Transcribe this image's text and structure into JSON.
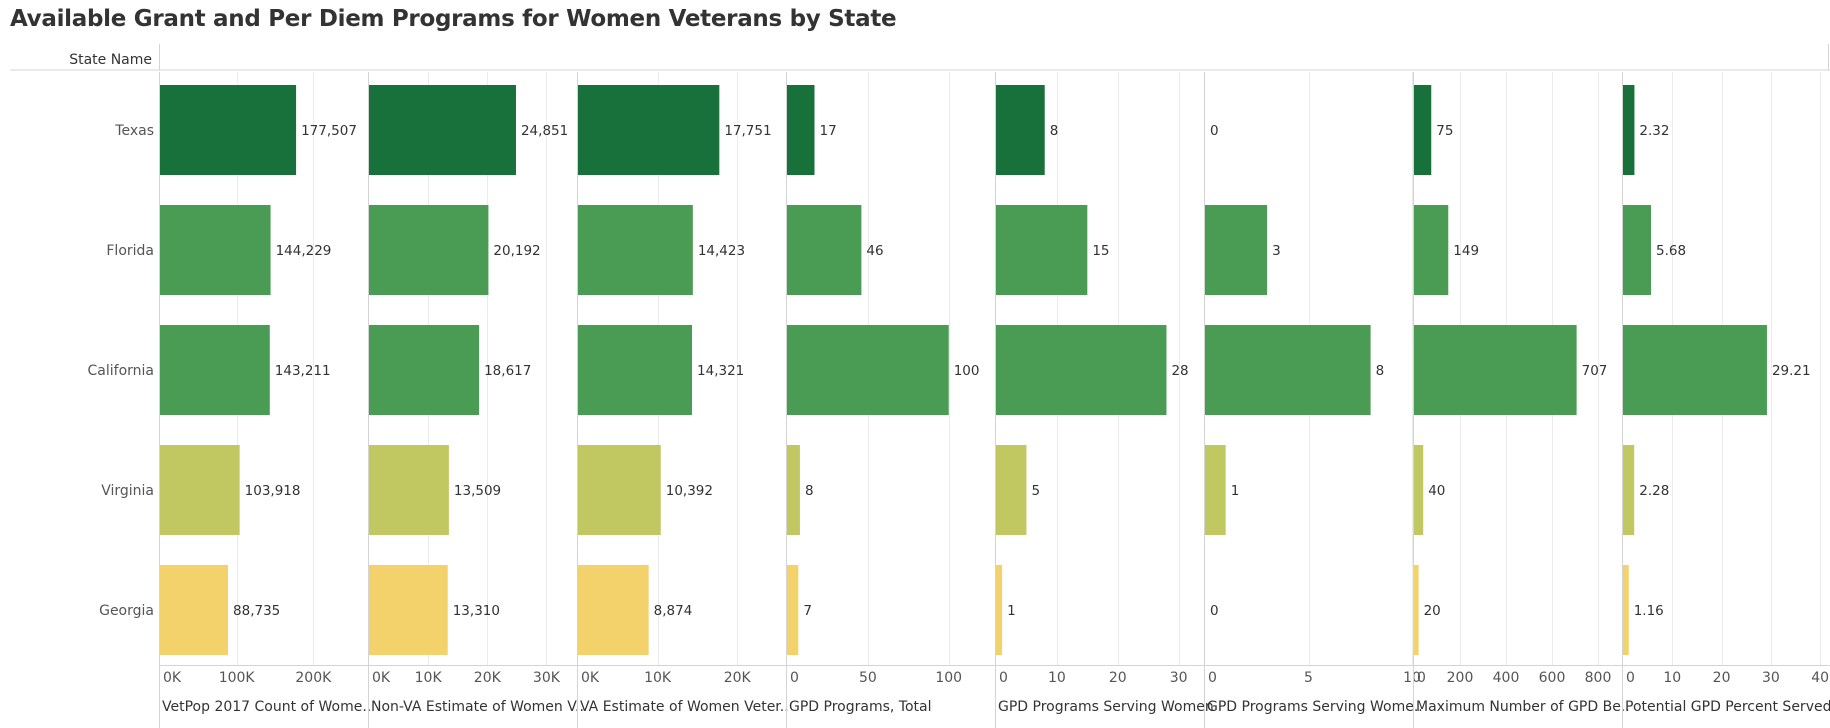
{
  "title": "Available Grant and Per Diem Programs for Women Veterans by State",
  "row_header": "State Name",
  "colors": {
    "Texas": "#18703a",
    "Florida": "#4a9c54",
    "California": "#4a9c54",
    "Virginia": "#c1c861",
    "Georgia": "#f3d16b",
    "grid": "#ebebeb",
    "axis": "#d4d4d4",
    "text": "#333333",
    "label": "#555555"
  },
  "chart_data": {
    "type": "bar",
    "orientation": "horizontal",
    "categories": [
      "Texas",
      "Florida",
      "California",
      "Virginia",
      "Georgia"
    ],
    "panels": [
      {
        "name": "VetPop 2017 Count of Wome..",
        "values": [
          177507,
          144229,
          143211,
          103918,
          88735
        ],
        "labels": [
          "177,507",
          "144,229",
          "143,211",
          "103,918",
          "88,735"
        ],
        "xlim": [
          0,
          270000
        ],
        "ticks": [
          {
            "v": 0,
            "t": "0K"
          },
          {
            "v": 100000,
            "t": "100K"
          },
          {
            "v": 200000,
            "t": "200K"
          }
        ]
      },
      {
        "name": "Non-VA Estimate of Women V..",
        "values": [
          24851,
          20192,
          18617,
          13509,
          13310
        ],
        "labels": [
          "24,851",
          "20,192",
          "18,617",
          "13,509",
          "13,310"
        ],
        "xlim": [
          0,
          35000
        ],
        "ticks": [
          {
            "v": 0,
            "t": "0K"
          },
          {
            "v": 10000,
            "t": "10K"
          },
          {
            "v": 20000,
            "t": "20K"
          },
          {
            "v": 30000,
            "t": "30K"
          }
        ]
      },
      {
        "name": "VA Estimate of Women Veter..",
        "values": [
          17751,
          14423,
          14321,
          10392,
          8874
        ],
        "labels": [
          "17,751",
          "14,423",
          "14,321",
          "10,392",
          "8,874"
        ],
        "xlim": [
          0,
          26000
        ],
        "ticks": [
          {
            "v": 0,
            "t": "0K"
          },
          {
            "v": 10000,
            "t": "10K"
          },
          {
            "v": 20000,
            "t": "20K"
          }
        ]
      },
      {
        "name": "GPD Programs, Total",
        "values": [
          17,
          46,
          100,
          8,
          7
        ],
        "labels": [
          "17",
          "46",
          "100",
          "8",
          "7"
        ],
        "xlim": [
          0,
          128
        ],
        "ticks": [
          {
            "v": 0,
            "t": "0"
          },
          {
            "v": 50,
            "t": "50"
          },
          {
            "v": 100,
            "t": "100"
          }
        ]
      },
      {
        "name": "GPD Programs Serving Women",
        "values": [
          8,
          15,
          28,
          5,
          1
        ],
        "labels": [
          "8",
          "15",
          "28",
          "5",
          "1"
        ],
        "xlim": [
          0,
          34
        ],
        "ticks": [
          {
            "v": 0,
            "t": "0"
          },
          {
            "v": 10,
            "t": "10"
          },
          {
            "v": 20,
            "t": "20"
          },
          {
            "v": 30,
            "t": "30"
          }
        ]
      },
      {
        "name": "GPD Programs Serving Wome..",
        "values": [
          0,
          3,
          8,
          1,
          0
        ],
        "labels": [
          "0",
          "3",
          "8",
          "1",
          "0"
        ],
        "xlim": [
          0,
          10
        ],
        "ticks": [
          {
            "v": 0,
            "t": "0"
          },
          {
            "v": 5,
            "t": "5"
          },
          {
            "v": 10,
            "t": "10"
          }
        ]
      },
      {
        "name": "Maximum Number of GPD Be..",
        "values": [
          75,
          149,
          707,
          40,
          20
        ],
        "labels": [
          "75",
          "149",
          "707",
          "40",
          "20"
        ],
        "xlim": [
          0,
          900
        ],
        "ticks": [
          {
            "v": 0,
            "t": "0"
          },
          {
            "v": 200,
            "t": "200"
          },
          {
            "v": 400,
            "t": "400"
          },
          {
            "v": 600,
            "t": "600"
          },
          {
            "v": 800,
            "t": "800"
          }
        ]
      },
      {
        "name": "Potential GPD Percent Served..",
        "values": [
          2.32,
          5.68,
          29.21,
          2.28,
          1.16
        ],
        "labels": [
          "2.32",
          "5.68",
          "29.21",
          "2.28",
          "1.16"
        ],
        "xlim": [
          0,
          42
        ],
        "ticks": [
          {
            "v": 0,
            "t": "0"
          },
          {
            "v": 10,
            "t": "10"
          },
          {
            "v": 20,
            "t": "20"
          },
          {
            "v": 30,
            "t": "30"
          },
          {
            "v": 40,
            "t": "40"
          }
        ]
      }
    ]
  }
}
